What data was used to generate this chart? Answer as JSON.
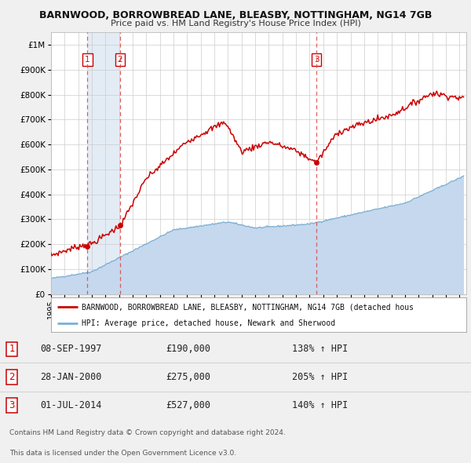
{
  "title": "BARNWOOD, BORROWBREAD LANE, BLEASBY, NOTTINGHAM, NG14 7GB",
  "subtitle": "Price paid vs. HM Land Registry's House Price Index (HPI)",
  "xlim": [
    1995.0,
    2025.5
  ],
  "ylim": [
    0,
    1050000
  ],
  "yticks": [
    0,
    100000,
    200000,
    300000,
    400000,
    500000,
    600000,
    700000,
    800000,
    900000,
    1000000
  ],
  "ytick_labels": [
    "£0",
    "£100K",
    "£200K",
    "£300K",
    "£400K",
    "£500K",
    "£600K",
    "£700K",
    "£800K",
    "£900K",
    "£1M"
  ],
  "xtick_years": [
    1995,
    1996,
    1997,
    1998,
    1999,
    2000,
    2001,
    2002,
    2003,
    2004,
    2005,
    2006,
    2007,
    2008,
    2009,
    2010,
    2011,
    2012,
    2013,
    2014,
    2015,
    2016,
    2017,
    2018,
    2019,
    2020,
    2021,
    2022,
    2023,
    2024,
    2025
  ],
  "sale_color": "#cc0000",
  "hpi_fill_color": "#c5d8ee",
  "hpi_line_color": "#7bafd4",
  "background_color": "#f0f0f0",
  "plot_bg_color": "#ffffff",
  "grid_color": "#cccccc",
  "sale_points": [
    {
      "year": 1997.69,
      "value": 190000,
      "label": "1"
    },
    {
      "year": 2000.08,
      "value": 275000,
      "label": "2"
    },
    {
      "year": 2014.5,
      "value": 527000,
      "label": "3"
    }
  ],
  "vline_color": "#dd4444",
  "highlight_fill_color": "#ccdded",
  "legend_line1": "BARNWOOD, BORROWBREAD LANE, BLEASBY, NOTTINGHAM, NG14 7GB (detached hous",
  "legend_line2": "HPI: Average price, detached house, Newark and Sherwood",
  "table_rows": [
    {
      "num": "1",
      "date": "08-SEP-1997",
      "price": "£190,000",
      "hpi": "138% ↑ HPI"
    },
    {
      "num": "2",
      "date": "28-JAN-2000",
      "price": "£275,000",
      "hpi": "205% ↑ HPI"
    },
    {
      "num": "3",
      "date": "01-JUL-2014",
      "price": "£527,000",
      "hpi": "140% ↑ HPI"
    }
  ],
  "footnote1": "Contains HM Land Registry data © Crown copyright and database right 2024.",
  "footnote2": "This data is licensed under the Open Government Licence v3.0."
}
